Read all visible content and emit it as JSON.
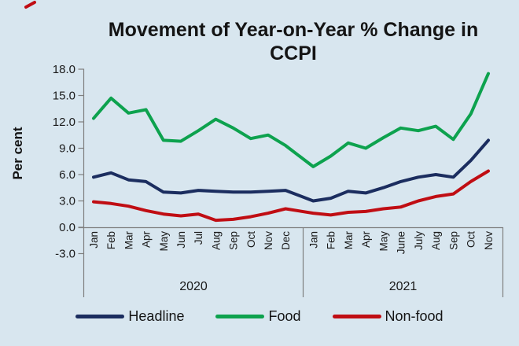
{
  "page": {
    "background": "#d8e6ef"
  },
  "title": "Movement of Year-on-Year % Change in CCPI",
  "chart_data": {
    "type": "line",
    "title": "Movement of Year-on-Year % Change in CCPI",
    "xlabel": "",
    "ylabel": "Per cent",
    "ylim": [
      -3.0,
      18.0
    ],
    "grid": false,
    "legend_position": "bottom",
    "y_ticks": [
      18.0,
      15.0,
      12.0,
      9.0,
      6.0,
      3.0,
      0.0,
      -3.0
    ],
    "y_tick_labels": [
      "18.0",
      "15.0",
      "12.0",
      "9.0",
      "6.0",
      "3.0",
      "0.0",
      "-3.0"
    ],
    "x_groups": [
      {
        "year": "2020",
        "months": [
          "Jan",
          "Feb",
          "Mar",
          "Apr",
          "May",
          "Jun",
          "Jul",
          "Aug",
          "Sep",
          "Oct",
          "Nov",
          "Dec"
        ]
      },
      {
        "year": "2021",
        "months": [
          "Jan",
          "Feb",
          "Mar",
          "Apr",
          "May",
          "June",
          "July",
          "Aug",
          "Sep",
          "Oct",
          "Nov"
        ]
      }
    ],
    "series": [
      {
        "name": "Headline",
        "color": "#1b2d5f",
        "values": [
          5.7,
          6.2,
          5.4,
          5.2,
          4.0,
          3.9,
          4.2,
          4.1,
          4.0,
          4.0,
          4.1,
          4.2,
          3.0,
          3.3,
          4.1,
          3.9,
          4.5,
          5.2,
          5.7,
          6.0,
          5.7,
          7.6,
          9.9
        ]
      },
      {
        "name": "Food",
        "color": "#0da24e",
        "values": [
          12.4,
          14.7,
          13.0,
          13.4,
          9.9,
          9.8,
          11.0,
          12.3,
          11.3,
          10.1,
          10.5,
          9.3,
          6.9,
          8.1,
          9.6,
          9.0,
          10.2,
          11.3,
          11.0,
          11.5,
          10.0,
          12.9,
          17.5
        ]
      },
      {
        "name": "Non-food",
        "color": "#c00d13",
        "values": [
          2.9,
          2.7,
          2.4,
          1.9,
          1.5,
          1.3,
          1.5,
          0.8,
          0.9,
          1.2,
          1.6,
          2.1,
          1.6,
          1.4,
          1.7,
          1.8,
          2.1,
          2.3,
          3.0,
          3.5,
          3.8,
          5.2,
          6.4
        ]
      }
    ]
  },
  "legend": {
    "items": [
      {
        "label": "Headline",
        "color": "#1b2d5f"
      },
      {
        "label": "Food",
        "color": "#0da24e"
      },
      {
        "label": "Non-food",
        "color": "#c00d13"
      }
    ]
  }
}
